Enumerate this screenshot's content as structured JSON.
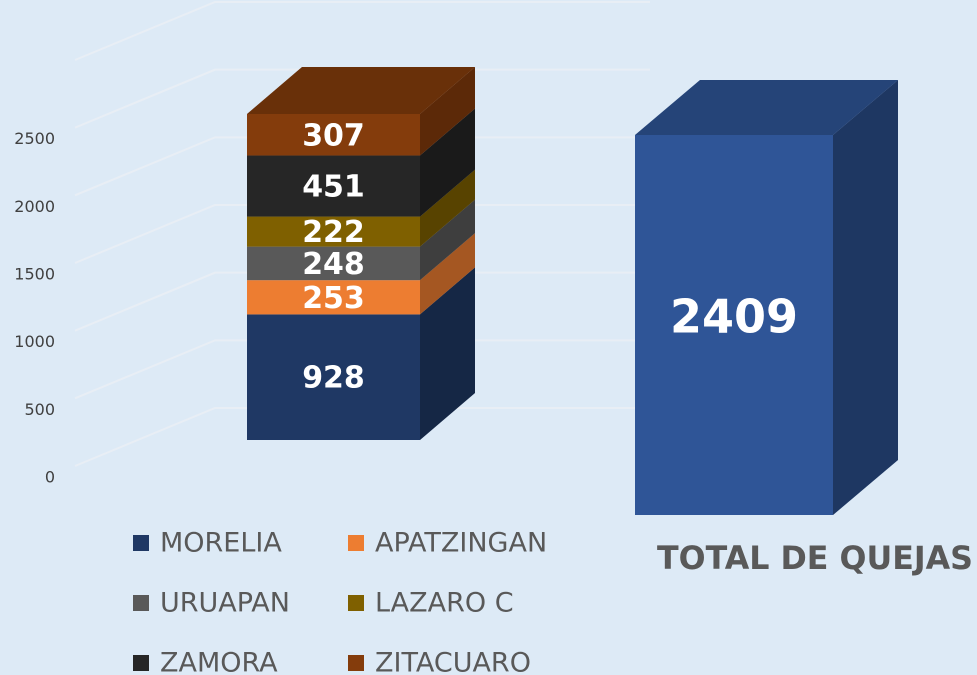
{
  "chart_data": [
    {
      "type": "bar",
      "stacked": true,
      "series": [
        {
          "name": "MORELIA",
          "color": "#1f3864",
          "values": [
            928
          ]
        },
        {
          "name": "APATZINGAN",
          "color": "#ed7d31",
          "values": [
            253
          ]
        },
        {
          "name": "URUAPAN",
          "color": "#595959",
          "values": [
            248
          ]
        },
        {
          "name": "LAZARO C",
          "color": "#7f6000",
          "values": [
            222
          ]
        },
        {
          "name": "ZAMORA",
          "color": "#262626",
          "values": [
            451
          ]
        },
        {
          "name": "ZITACUARO",
          "color": "#843c0c",
          "values": [
            307
          ]
        }
      ],
      "ylim": [
        0,
        3000
      ],
      "yticks": [
        0,
        500,
        1000,
        1500,
        2000,
        2500
      ],
      "grid": true
    },
    {
      "type": "bar",
      "categories": [
        "TOTAL DE QUEJAS"
      ],
      "values": [
        2409
      ],
      "color": "#2f5597"
    }
  ]
}
